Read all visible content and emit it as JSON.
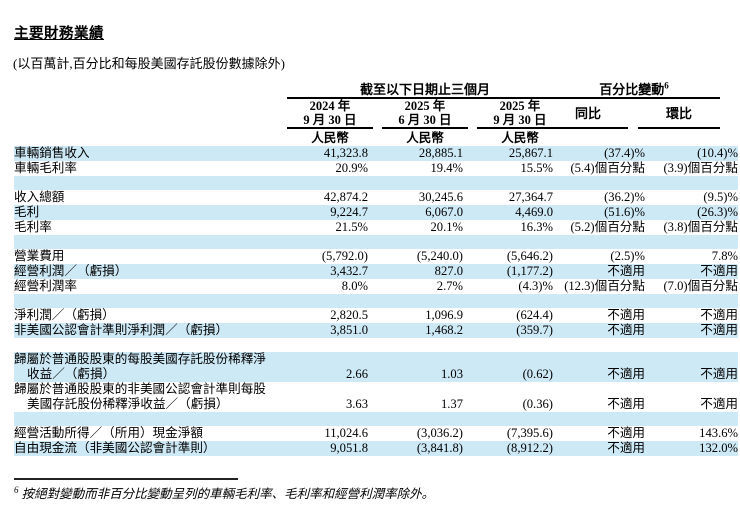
{
  "page": {
    "title": "主要財務業績",
    "subtitle": "(以百萬計,百分比和每股美國存託股份數據除外)",
    "footnote": {
      "marker": "6",
      "text": "按絕對變動而非百分比變動呈列的車輛毛利率、毛利率和經營利潤率除外。"
    }
  },
  "colors": {
    "row_shade": "#cee9f6",
    "text": "#000000",
    "rule": "#000000"
  },
  "table": {
    "group_headers": [
      {
        "label": "截至以下日期止三個月"
      },
      {
        "label": "百分比變動",
        "sup": "6"
      }
    ],
    "column_headers": [
      {
        "line1": "2024 年",
        "line2": "9 月 30 日",
        "currency": "人民幣"
      },
      {
        "line1": "2025 年",
        "line2": "6 月 30 日",
        "currency": "人民幣"
      },
      {
        "line1": "2025 年",
        "line2": "9 月 30 日",
        "currency": "人民幣"
      },
      {
        "label": "同比"
      },
      {
        "label": "環比"
      }
    ],
    "rows": [
      {
        "type": "data",
        "shade": true,
        "label": "車輛銷售收入",
        "values": [
          "41,323.8",
          "28,885.1",
          "25,867.1",
          "(37.4)%",
          "(10.4)%"
        ]
      },
      {
        "type": "data",
        "shade": false,
        "label": "車輛毛利率",
        "values": [
          "20.9%",
          "19.4%",
          "15.5%",
          "(5.4)個百分點",
          "(3.9)個百分點"
        ]
      },
      {
        "type": "spacer",
        "shade": true
      },
      {
        "type": "data",
        "shade": false,
        "label": "收入總額",
        "values": [
          "42,874.2",
          "30,245.6",
          "27,364.7",
          "(36.2)%",
          "(9.5)%"
        ]
      },
      {
        "type": "data",
        "shade": true,
        "label": "毛利",
        "values": [
          "9,224.7",
          "6,067.0",
          "4,469.0",
          "(51.6)%",
          "(26.3)%"
        ]
      },
      {
        "type": "data",
        "shade": false,
        "label": "毛利率",
        "values": [
          "21.5%",
          "20.1%",
          "16.3%",
          "(5.2)個百分點",
          "(3.8)個百分點"
        ]
      },
      {
        "type": "spacer",
        "shade": true
      },
      {
        "type": "data",
        "shade": false,
        "label": "營業費用",
        "values": [
          "(5,792.0)",
          "(5,240.0)",
          "(5,646.2)",
          "(2.5)%",
          "7.8%"
        ]
      },
      {
        "type": "data",
        "shade": true,
        "label": "經營利潤／（虧損）",
        "values": [
          "3,432.7",
          "827.0",
          "(1,177.2)",
          "不適用",
          "不適用"
        ]
      },
      {
        "type": "data",
        "shade": false,
        "label": "經營利潤率",
        "values": [
          "8.0%",
          "2.7%",
          "(4.3)%",
          "(12.3)個百分點",
          "(7.0)個百分點"
        ]
      },
      {
        "type": "spacer",
        "shade": true
      },
      {
        "type": "data",
        "shade": false,
        "label": "淨利潤／（虧損）",
        "values": [
          "2,820.5",
          "1,096.9",
          "(624.4)",
          "不適用",
          "不適用"
        ]
      },
      {
        "type": "data",
        "shade": true,
        "label": "非美國公認會計準則淨利潤／（虧損）",
        "values": [
          "3,851.0",
          "1,468.2",
          "(359.7)",
          "不適用",
          "不適用"
        ]
      },
      {
        "type": "spacer",
        "shade": false
      },
      {
        "type": "data",
        "shade": true,
        "label": "歸屬於普通股股東的每股美國存託股份稀釋淨",
        "label2": "收益／（虧損）",
        "values": [
          "2.66",
          "1.03",
          "(0.62)",
          "不適用",
          "不適用"
        ]
      },
      {
        "type": "data",
        "shade": false,
        "label": "歸屬於普通股股東的非美國公認會計準則每股",
        "label2": "美國存託股份稀釋淨收益／（虧損）",
        "values": [
          "3.63",
          "1.37",
          "(0.36)",
          "不適用",
          "不適用"
        ]
      },
      {
        "type": "spacer",
        "shade": true
      },
      {
        "type": "data",
        "shade": false,
        "label": "經營活動所得／（所用）現金淨額",
        "values": [
          "11,024.6",
          "(3,036.2)",
          "(7,395.6)",
          "不適用",
          "143.6%"
        ]
      },
      {
        "type": "data",
        "shade": true,
        "label": "自由現金流（非美國公認會計準則）",
        "values": [
          "9,051.8",
          "(3,841.8)",
          "(8,912.2)",
          "不適用",
          "132.0%"
        ]
      }
    ]
  }
}
